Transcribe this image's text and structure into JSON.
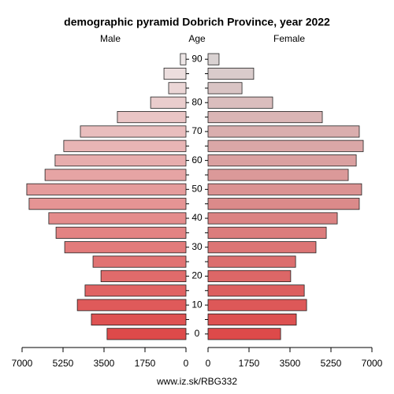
{
  "chart_data": {
    "type": "pyramid",
    "title": "demographic pyramid Dobrich Province, year 2022",
    "footer": "www.iz.sk/RBG332",
    "category_label": "Age",
    "categories": [
      "0",
      null,
      "10",
      null,
      "20",
      null,
      "30",
      null,
      "40",
      null,
      "50",
      null,
      "60",
      null,
      "70",
      null,
      "80",
      null,
      null,
      "90"
    ],
    "series": [
      {
        "name": "Male",
        "side": "left",
        "colors": [
          "#dd4a4a",
          "#ede6e6"
        ],
        "values": [
          3370,
          4040,
          4640,
          4310,
          3630,
          3970,
          5180,
          5550,
          5860,
          6700,
          6800,
          6020,
          5590,
          5220,
          4510,
          2930,
          1510,
          740,
          940,
          240
        ]
      },
      {
        "name": "Female",
        "side": "right",
        "colors": [
          "#dd4a4a",
          "#d9d2d2"
        ],
        "values": [
          3100,
          3770,
          4210,
          4110,
          3530,
          3740,
          4610,
          5050,
          5520,
          6460,
          6560,
          5990,
          6330,
          6630,
          6460,
          4880,
          2760,
          1450,
          1950,
          470
        ]
      }
    ],
    "xlim": [
      0,
      7000
    ],
    "xticks": [
      0,
      1750,
      3500,
      5250,
      7000
    ]
  }
}
